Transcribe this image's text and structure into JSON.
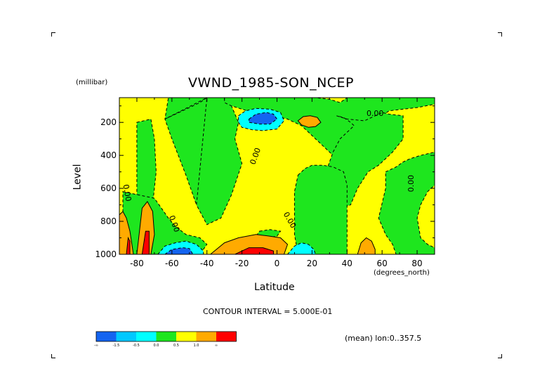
{
  "header": {
    "title": "VWND_1985-SON_NCEP",
    "units": "(millibar)"
  },
  "footer": {
    "contour_note": "CONTOUR INTERVAL = 5.000E-01",
    "mean_note": "(mean) lon:0..357.5"
  },
  "chart_data": {
    "type": "heatmap",
    "title": "VWND_1985-SON_NCEP",
    "xlabel": "Latitude",
    "x_units": "(degrees_north)",
    "ylabel": "Level",
    "y_units": "(millibar)",
    "xlim": [
      -90,
      90
    ],
    "ylim": [
      1000,
      50
    ],
    "x_ticks": [
      -80,
      -60,
      -40,
      -20,
      0,
      20,
      40,
      60,
      80
    ],
    "x_tick_labels": [
      "-80",
      "-60",
      "-40",
      "-20",
      "0",
      "20",
      "40",
      "60",
      "80"
    ],
    "y_ticks": [
      200,
      400,
      600,
      800,
      1000
    ],
    "y_tick_labels": [
      "200",
      "400",
      "600",
      "800",
      "1000"
    ],
    "contour_interval": 0.5,
    "contour_labels": [
      {
        "text": "0.00",
        "lat": 56,
        "lev": 160,
        "rotate": 0
      },
      {
        "text": "0.00",
        "lat": -11,
        "lev": 410,
        "rotate": -70
      },
      {
        "text": "0.00",
        "lat": -87,
        "lev": 630,
        "rotate": 80
      },
      {
        "text": "0.00",
        "lat": -60,
        "lev": 820,
        "rotate": 70
      },
      {
        "text": "0.00",
        "lat": 6,
        "lev": 800,
        "rotate": 60
      },
      {
        "text": "0.00",
        "lat": 78,
        "lev": 570,
        "rotate": -90
      }
    ],
    "colorbar": {
      "colors": [
        "#1464f0",
        "#00c8ff",
        "#00ffff",
        "#1ee61e",
        "#ffff00",
        "#ffaa00",
        "#ff0000"
      ],
      "labels": [
        "-∞",
        "-1.5",
        "-0.5",
        "0.0",
        "0.5",
        "1.0",
        "∞"
      ]
    },
    "regions": [
      {
        "value": 0.25,
        "color": "#ffff00",
        "lats": [
          -90,
          90,
          90,
          -90
        ],
        "levs": [
          50,
          50,
          1000,
          1000
        ]
      },
      {
        "value": -0.25,
        "color": "#1ee61e",
        "lats": [
          -80,
          -72,
          -70,
          -69,
          -71,
          -75,
          -80
        ],
        "levs": [
          200,
          180,
          300,
          500,
          700,
          660,
          640
        ]
      },
      {
        "value": -0.25,
        "color": "#1ee61e",
        "lats": [
          -88,
          -70,
          -66,
          -62,
          -58,
          -52,
          -44,
          -40,
          -44,
          -52,
          -60,
          -66,
          -72,
          -80,
          -88
        ],
        "levs": [
          620,
          660,
          720,
          780,
          830,
          880,
          900,
          940,
          1000,
          1000,
          1000,
          1000,
          1000,
          1000,
          1000
        ]
      },
      {
        "value": -0.25,
        "color": "#1ee61e",
        "lats": [
          -40,
          -62,
          -64,
          -60,
          -52,
          -46,
          -40
        ],
        "levs": [
          50,
          50,
          180,
          300,
          520,
          700,
          780
        ]
      },
      {
        "value": -0.25,
        "color": "#1ee61e",
        "lats": [
          -64,
          -58,
          -50,
          -44,
          -40
        ],
        "levs": [
          180,
          150,
          110,
          80,
          50
        ]
      },
      {
        "value": -0.25,
        "color": "#1ee61e",
        "lats": [
          -40,
          -28,
          -22,
          -24,
          -20,
          -26,
          -32,
          -40,
          -46
        ],
        "levs": [
          50,
          50,
          200,
          300,
          450,
          640,
          780,
          820,
          700
        ]
      },
      {
        "value": -0.25,
        "color": "#1ee61e",
        "lats": [
          -30,
          -22,
          -14,
          -8,
          -2,
          6,
          14,
          22,
          30,
          36,
          40,
          46,
          50,
          56,
          64,
          72,
          78,
          84,
          90,
          90,
          80,
          72,
          64,
          60,
          54,
          50,
          46,
          40,
          34,
          30,
          24,
          18,
          14,
          10,
          8,
          6,
          4,
          2,
          -2,
          -6,
          -10,
          -14,
          -20,
          -26,
          -30
        ],
        "levs": [
          50,
          50,
          50,
          50,
          50,
          50,
          50,
          50,
          60,
          80,
          50,
          50,
          50,
          50,
          50,
          50,
          50,
          50,
          50,
          90,
          110,
          120,
          130,
          160,
          200,
          300,
          420,
          430,
          420,
          380,
          320,
          260,
          220,
          200,
          190,
          180,
          175,
          170,
          165,
          160,
          150,
          140,
          120,
          100,
          80
        ]
      },
      {
        "value": -0.25,
        "color": "#1ee61e",
        "lats": [
          34,
          40,
          50,
          60,
          64,
          72,
          72,
          66,
          62,
          58,
          52,
          46,
          42,
          36,
          34,
          30,
          28,
          32,
          36,
          40,
          44,
          42,
          38,
          34
        ],
        "levs": [
          160,
          180,
          190,
          140,
          150,
          160,
          300,
          380,
          420,
          460,
          500,
          600,
          700,
          720,
          700,
          640,
          500,
          380,
          300,
          260,
          220,
          200,
          170,
          160
        ]
      },
      {
        "value": -0.25,
        "color": "#1ee61e",
        "lats": [
          62,
          68,
          72,
          76,
          82,
          90,
          90,
          86,
          82,
          80,
          82,
          86,
          90,
          90,
          80,
          76,
          72,
          68,
          66,
          62,
          58,
          62
        ],
        "levs": [
          500,
          470,
          440,
          420,
          400,
          380,
          580,
          620,
          700,
          780,
          900,
          940,
          960,
          1000,
          1000,
          1000,
          1000,
          1000,
          940,
          880,
          780,
          600
        ]
      },
      {
        "value": -0.25,
        "color": "#1ee61e",
        "lats": [
          12,
          16,
          20,
          26,
          32,
          38,
          40,
          40,
          36,
          30,
          24,
          20,
          16,
          12,
          10,
          10
        ],
        "levs": [
          520,
          480,
          460,
          460,
          470,
          500,
          580,
          1000,
          1000,
          1000,
          1000,
          1000,
          1000,
          1000,
          880,
          620
        ]
      },
      {
        "value": -0.25,
        "color": "#1ee61e",
        "lats": [
          -10,
          -4,
          2,
          0,
          -6,
          -12
        ],
        "levs": [
          860,
          850,
          860,
          890,
          900,
          890
        ]
      },
      {
        "value": 0.75,
        "color": "#ffaa00",
        "lats": [
          -90,
          -88,
          -86,
          -84,
          -82,
          -84,
          -90
        ],
        "levs": [
          760,
          740,
          780,
          860,
          1000,
          1000,
          1000
        ]
      },
      {
        "value": 0.75,
        "color": "#ffaa00",
        "lats": [
          -80,
          -77,
          -74,
          -71,
          -70,
          -72,
          -76,
          -80
        ],
        "levs": [
          1000,
          720,
          680,
          740,
          880,
          1000,
          1000,
          1000
        ]
      },
      {
        "value": 0.75,
        "color": "#ffaa00",
        "lats": [
          -38,
          -30,
          -22,
          -12,
          -4,
          2,
          6,
          4,
          -2,
          -10,
          -20,
          -30,
          -38
        ],
        "levs": [
          1000,
          930,
          900,
          880,
          890,
          900,
          940,
          1000,
          1000,
          1000,
          1000,
          1000,
          1000
        ]
      },
      {
        "value": 0.75,
        "color": "#ffaa00",
        "lats": [
          12,
          15,
          19,
          23,
          25,
          22,
          18,
          14
        ],
        "levs": [
          190,
          165,
          160,
          170,
          200,
          225,
          230,
          215
        ]
      },
      {
        "value": 0.75,
        "color": "#ffaa00",
        "lats": [
          46,
          48,
          51,
          54,
          56,
          56,
          46
        ],
        "levs": [
          1000,
          930,
          900,
          920,
          970,
          1000,
          1000
        ]
      },
      {
        "value": 1.25,
        "color": "#ff0000",
        "lats": [
          -86,
          -85,
          -84,
          -84,
          -86
        ],
        "levs": [
          1000,
          900,
          920,
          1000,
          1000
        ]
      },
      {
        "value": 1.25,
        "color": "#ff0000",
        "lats": [
          -77,
          -75,
          -73,
          -73,
          -77
        ],
        "levs": [
          1000,
          860,
          860,
          1000,
          1000
        ]
      },
      {
        "value": 1.25,
        "color": "#ff0000",
        "lats": [
          -24,
          -16,
          -8,
          -2,
          -2,
          -24
        ],
        "levs": [
          1000,
          960,
          960,
          980,
          1000,
          1000
        ]
      },
      {
        "value": -0.75,
        "color": "#00ffff",
        "lats": [
          -22,
          -18,
          -12,
          -4,
          2,
          4,
          0,
          -8,
          -14,
          -20,
          -22
        ],
        "levs": [
          160,
          130,
          115,
          120,
          140,
          190,
          240,
          250,
          245,
          230,
          200
        ]
      },
      {
        "value": -0.75,
        "color": "#00ffff",
        "lats": [
          -68,
          -64,
          -58,
          -52,
          -46,
          -42,
          -42,
          -68
        ],
        "levs": [
          1000,
          950,
          930,
          920,
          940,
          980,
          1000,
          1000
        ]
      },
      {
        "value": -0.75,
        "color": "#00ffff",
        "lats": [
          6,
          10,
          14,
          18,
          21,
          22,
          6
        ],
        "levs": [
          1000,
          950,
          930,
          940,
          970,
          1000,
          1000
        ]
      },
      {
        "value": -1.25,
        "color": "#1464f0",
        "lats": [
          -16,
          -12,
          -6,
          -2,
          0,
          -4,
          -10,
          -16
        ],
        "levs": [
          180,
          150,
          140,
          150,
          180,
          210,
          210,
          200
        ]
      },
      {
        "value": -1.25,
        "color": "#1464f0",
        "lats": [
          -64,
          -60,
          -54,
          -50,
          -48,
          -64
        ],
        "levs": [
          1000,
          970,
          960,
          965,
          1000,
          1000
        ]
      }
    ]
  }
}
